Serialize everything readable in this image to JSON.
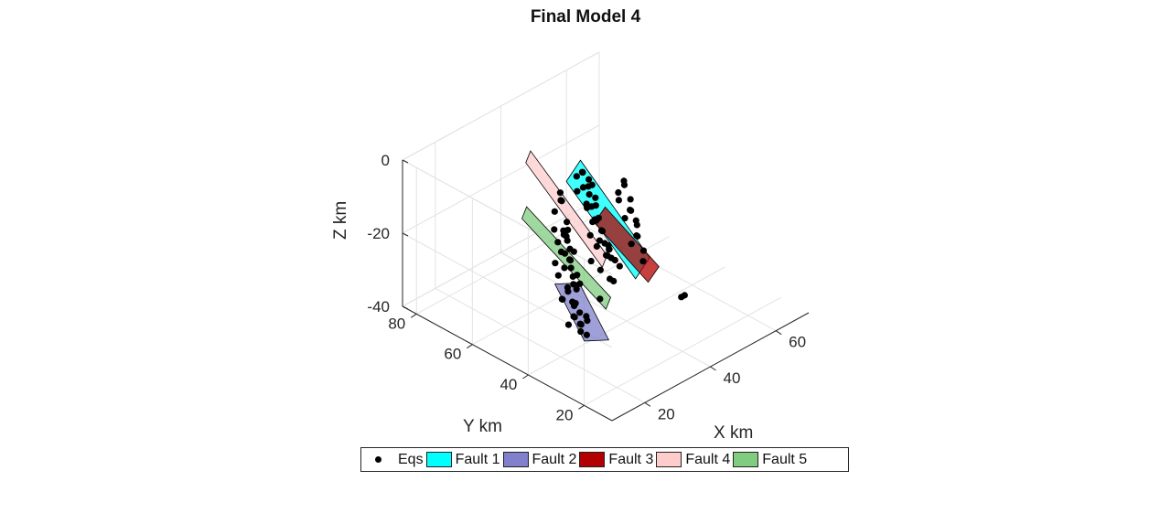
{
  "chart_data": {
    "type": "scatter",
    "subtype": "3d-scatter-with-planes",
    "title": "Final Model 4",
    "xlabel": "X km",
    "ylabel": "Y km",
    "zlabel": "Z km",
    "xlim": [
      10,
      70
    ],
    "ylim": [
      10,
      85
    ],
    "zlim": [
      -40,
      0
    ],
    "xticks": [
      20,
      40,
      60
    ],
    "yticks": [
      20,
      40,
      60,
      80
    ],
    "zticks": [
      -40,
      -20,
      0
    ],
    "grid": true,
    "legend_position": "bottom",
    "series": [
      {
        "name": "Eqs",
        "kind": "points",
        "color": "#000000",
        "points": [
          [
            35,
            50,
            -1
          ],
          [
            36,
            51,
            -2
          ],
          [
            35,
            52,
            -3
          ],
          [
            37,
            50,
            -4
          ],
          [
            36,
            49,
            -5
          ],
          [
            38,
            50,
            -6
          ],
          [
            37,
            52,
            -7
          ],
          [
            36,
            53,
            -8
          ],
          [
            38,
            51,
            -9
          ],
          [
            39,
            50,
            -10
          ],
          [
            37,
            49,
            -11
          ],
          [
            38,
            52,
            -12
          ],
          [
            40,
            51,
            -13
          ],
          [
            39,
            53,
            -14
          ],
          [
            38,
            49,
            -15
          ],
          [
            40,
            50,
            -16
          ],
          [
            39,
            51,
            -17
          ],
          [
            41,
            52,
            -18
          ],
          [
            40,
            49,
            -19
          ],
          [
            41,
            50,
            -20
          ],
          [
            42,
            51,
            -21
          ],
          [
            40,
            53,
            -22
          ],
          [
            41,
            49,
            -23
          ],
          [
            42,
            52,
            -24
          ],
          [
            43,
            50,
            -25
          ],
          [
            42,
            53,
            -26
          ],
          [
            44,
            51,
            -27
          ],
          [
            43,
            49,
            -28
          ],
          [
            44,
            52,
            -29
          ],
          [
            45,
            50,
            -30
          ],
          [
            46,
            48,
            -8
          ],
          [
            47,
            49,
            -10
          ],
          [
            46,
            50,
            -12
          ],
          [
            48,
            48,
            -14
          ],
          [
            47,
            47,
            -16
          ],
          [
            49,
            49,
            -18
          ],
          [
            48,
            50,
            -20
          ],
          [
            50,
            48,
            -22
          ],
          [
            49,
            47,
            -24
          ],
          [
            51,
            49,
            -26
          ],
          [
            50,
            50,
            -28
          ],
          [
            52,
            48,
            -30
          ],
          [
            51,
            47,
            -32
          ],
          [
            47,
            51,
            -15
          ],
          [
            48,
            46,
            -19
          ],
          [
            25,
            45,
            -10
          ],
          [
            26,
            46,
            -12
          ],
          [
            25,
            47,
            -14
          ],
          [
            27,
            45,
            -16
          ],
          [
            26,
            44,
            -18
          ],
          [
            28,
            46,
            -20
          ],
          [
            27,
            47,
            -22
          ],
          [
            26,
            48,
            -24
          ],
          [
            28,
            44,
            -26
          ],
          [
            29,
            45,
            -28
          ],
          [
            27,
            43,
            -30
          ],
          [
            29,
            47,
            -23
          ],
          [
            30,
            45,
            -27
          ],
          [
            28,
            48,
            -19
          ],
          [
            30,
            46,
            -25
          ],
          [
            22,
            40,
            -22
          ],
          [
            23,
            41,
            -24
          ],
          [
            22,
            42,
            -26
          ],
          [
            24,
            40,
            -28
          ],
          [
            23,
            39,
            -30
          ],
          [
            25,
            41,
            -32
          ],
          [
            24,
            42,
            -34
          ],
          [
            26,
            40,
            -36
          ],
          [
            25,
            39,
            -33
          ],
          [
            27,
            41,
            -35
          ],
          [
            26,
            38,
            -31
          ],
          [
            24,
            38,
            -29
          ],
          [
            28,
            40,
            -34
          ],
          [
            27,
            39,
            -37
          ],
          [
            23,
            43,
            -27
          ],
          [
            30,
            52,
            -5
          ],
          [
            31,
            53,
            -8
          ],
          [
            30,
            54,
            -11
          ],
          [
            32,
            52,
            -14
          ],
          [
            31,
            51,
            -17
          ],
          [
            33,
            53,
            -20
          ],
          [
            32,
            54,
            -23
          ],
          [
            31,
            55,
            -26
          ],
          [
            33,
            51,
            -29
          ],
          [
            34,
            52,
            -32
          ],
          [
            32,
            50,
            -35
          ],
          [
            34,
            54,
            -18
          ],
          [
            33,
            55,
            -10
          ],
          [
            35,
            53,
            -24
          ],
          [
            29,
            53,
            -15
          ],
          [
            55,
            38,
            -40
          ],
          [
            56,
            38,
            -40
          ],
          [
            36,
            48,
            -25
          ],
          [
            38,
            47,
            -28
          ],
          [
            40,
            46,
            -31
          ],
          [
            42,
            47,
            -33
          ],
          [
            37,
            46,
            -35
          ],
          [
            39,
            45,
            -22
          ],
          [
            41,
            48,
            -26
          ],
          [
            43,
            46,
            -29
          ]
        ]
      },
      {
        "name": "Fault 1",
        "kind": "plane",
        "color": "#00FFFF",
        "corners": [
          [
            37,
            53,
            0
          ],
          [
            53,
            47,
            -32
          ],
          [
            47,
            45,
            -34
          ],
          [
            31,
            51,
            -2
          ]
        ]
      },
      {
        "name": "Fault 2",
        "kind": "plane",
        "color": "#8080CC",
        "corners": [
          [
            19,
            41,
            -20
          ],
          [
            28,
            41,
            -40
          ],
          [
            32,
            37,
            -40
          ],
          [
            23,
            37,
            -20
          ]
        ]
      },
      {
        "name": "Fault 3",
        "kind": "plane",
        "color": "#B30000",
        "corners": [
          [
            42,
            50,
            -14
          ],
          [
            55,
            46,
            -35
          ],
          [
            50,
            44,
            -36
          ],
          [
            37,
            48,
            -15
          ]
        ]
      },
      {
        "name": "Fault 4",
        "kind": "plane",
        "color": "#FFCCCC",
        "corners": [
          [
            28,
            62,
            0
          ],
          [
            36,
            44,
            -25
          ],
          [
            40,
            47,
            -25
          ],
          [
            32,
            65,
            0
          ]
        ]
      },
      {
        "name": "Fault 5",
        "kind": "plane",
        "color": "#80CC80",
        "corners": [
          [
            20,
            54,
            -8
          ],
          [
            32,
            38,
            -32
          ],
          [
            36,
            41,
            -32
          ],
          [
            24,
            57,
            -8
          ]
        ]
      }
    ]
  }
}
